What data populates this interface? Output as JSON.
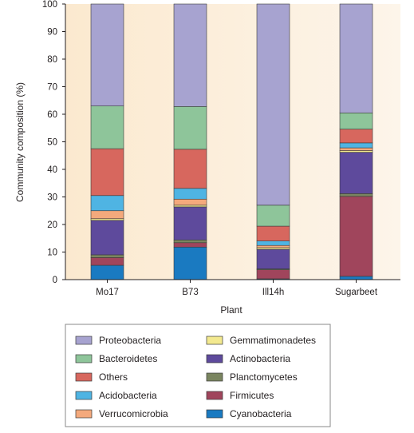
{
  "chart_data": {
    "type": "bar",
    "stacked": true,
    "title": "",
    "xlabel": "Plant",
    "ylabel": "Community composition (%)",
    "ylim": [
      0,
      100
    ],
    "yticks": [
      0,
      10,
      20,
      30,
      40,
      50,
      60,
      70,
      80,
      90,
      100
    ],
    "grid": false,
    "legend_position": "bottom",
    "categories": [
      "Mo17",
      "B73",
      "Ill14h",
      "Sugarbeet"
    ],
    "series": [
      {
        "name": "Cyanobacteria",
        "color": "#1a7ac1",
        "values": [
          5.2,
          11.8,
          0.3,
          1.2
        ]
      },
      {
        "name": "Firmicutes",
        "color": "#a0455c",
        "values": [
          2.8,
          1.6,
          3.3,
          29.0
        ]
      },
      {
        "name": "Planctomycetes",
        "color": "#7a8560",
        "values": [
          1.0,
          1.0,
          0.3,
          1.0
        ]
      },
      {
        "name": "Actinobacteria",
        "color": "#5e4a9c",
        "values": [
          12.5,
          12.0,
          7.1,
          15.0
        ]
      },
      {
        "name": "Gemmatimonadetes",
        "color": "#f3e98f",
        "values": [
          0.6,
          0.6,
          0.6,
          0.6
        ]
      },
      {
        "name": "Verrucomicrobia",
        "color": "#f4a97c",
        "values": [
          2.9,
          2.2,
          0.8,
          1.0
        ]
      },
      {
        "name": "Acidobacteria",
        "color": "#4fb4e3",
        "values": [
          5.5,
          3.9,
          1.6,
          1.8
        ]
      },
      {
        "name": "Others",
        "color": "#d7675e",
        "values": [
          17.0,
          14.2,
          5.4,
          5.0
        ]
      },
      {
        "name": "Bacteroidetes",
        "color": "#8ec59a",
        "values": [
          15.5,
          15.5,
          7.6,
          5.9
        ]
      },
      {
        "name": "Proteobacteria",
        "color": "#a7a3d0",
        "values": [
          37.0,
          37.2,
          73.0,
          39.5
        ]
      }
    ],
    "legend_order": [
      "Proteobacteria",
      "Bacteroidetes",
      "Others",
      "Acidobacteria",
      "Verrucomicrobia",
      "Gemmatimonadetes",
      "Actinobacteria",
      "Planctomycetes",
      "Firmicutes",
      "Cyanobacteria"
    ]
  }
}
